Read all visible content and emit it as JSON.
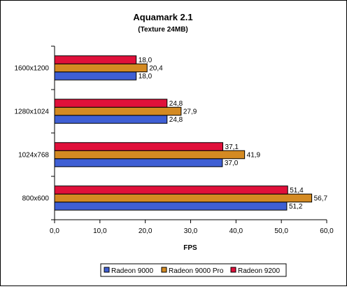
{
  "chart_data": {
    "type": "bar",
    "orientation": "horizontal",
    "title": "Aquamark 2.1",
    "subtitle": "(Texture 24MB)",
    "xlabel": "FPS",
    "ylabel": "",
    "categories": [
      "1600x1200",
      "1280x1024",
      "1024x768",
      "800x600"
    ],
    "series": [
      {
        "name": "Radeon 9000",
        "color": "#3f5fd4",
        "values": [
          18.0,
          24.8,
          37.0,
          51.2
        ],
        "labels": [
          "18,0",
          "24,8",
          "37,0",
          "51,2"
        ]
      },
      {
        "name": "Radeon 9000 Pro",
        "color": "#d48a22",
        "values": [
          20.4,
          27.9,
          41.9,
          56.7
        ],
        "labels": [
          "20,4",
          "27,9",
          "41,9",
          "56,7"
        ]
      },
      {
        "name": "Radeon 9200",
        "color": "#e0103a",
        "values": [
          18.0,
          24.8,
          37.1,
          51.4
        ],
        "labels": [
          "18,0",
          "24,8",
          "37,1",
          "51,4"
        ]
      }
    ],
    "xlim": [
      0,
      60
    ],
    "xticks": [
      0,
      10,
      20,
      30,
      40,
      50,
      60
    ],
    "xtick_labels": [
      "0,0",
      "10,0",
      "20,0",
      "30,0",
      "40,0",
      "50,0",
      "60,0"
    ],
    "grid": false,
    "legend_position": "bottom"
  }
}
